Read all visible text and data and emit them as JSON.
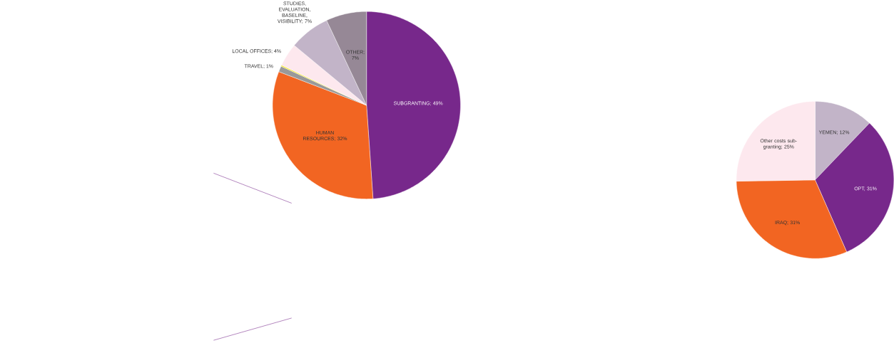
{
  "chart_data": [
    {
      "type": "pie",
      "categories": [
        "SUBGRANTING; 49%",
        "HUMAN RESOURCES; 32%",
        "TRAVEL; 1%",
        null,
        "LOCAL OFFICES; 4%",
        "STUDIES, EVALUATION, BASELINE, VISIBILITY; 7%",
        "OTHER; 7%"
      ],
      "values": [
        49,
        32,
        1,
        0.2,
        4,
        7,
        7
      ],
      "colors": [
        "#77288b",
        "#f26522",
        "#999999",
        "#f5e616",
        "#fde8ee",
        "#c2b4c8",
        "#968896"
      ]
    },
    {
      "type": "pie",
      "categories": [
        "YEMEN; 12%",
        "OPT; 31%",
        "IRAQ; 31%",
        "Other costs sub-granting; 25%"
      ],
      "values": [
        12,
        31,
        31,
        25
      ],
      "colors": [
        "#c2b4c8",
        "#77288b",
        "#f26522",
        "#fde8ee"
      ]
    }
  ]
}
